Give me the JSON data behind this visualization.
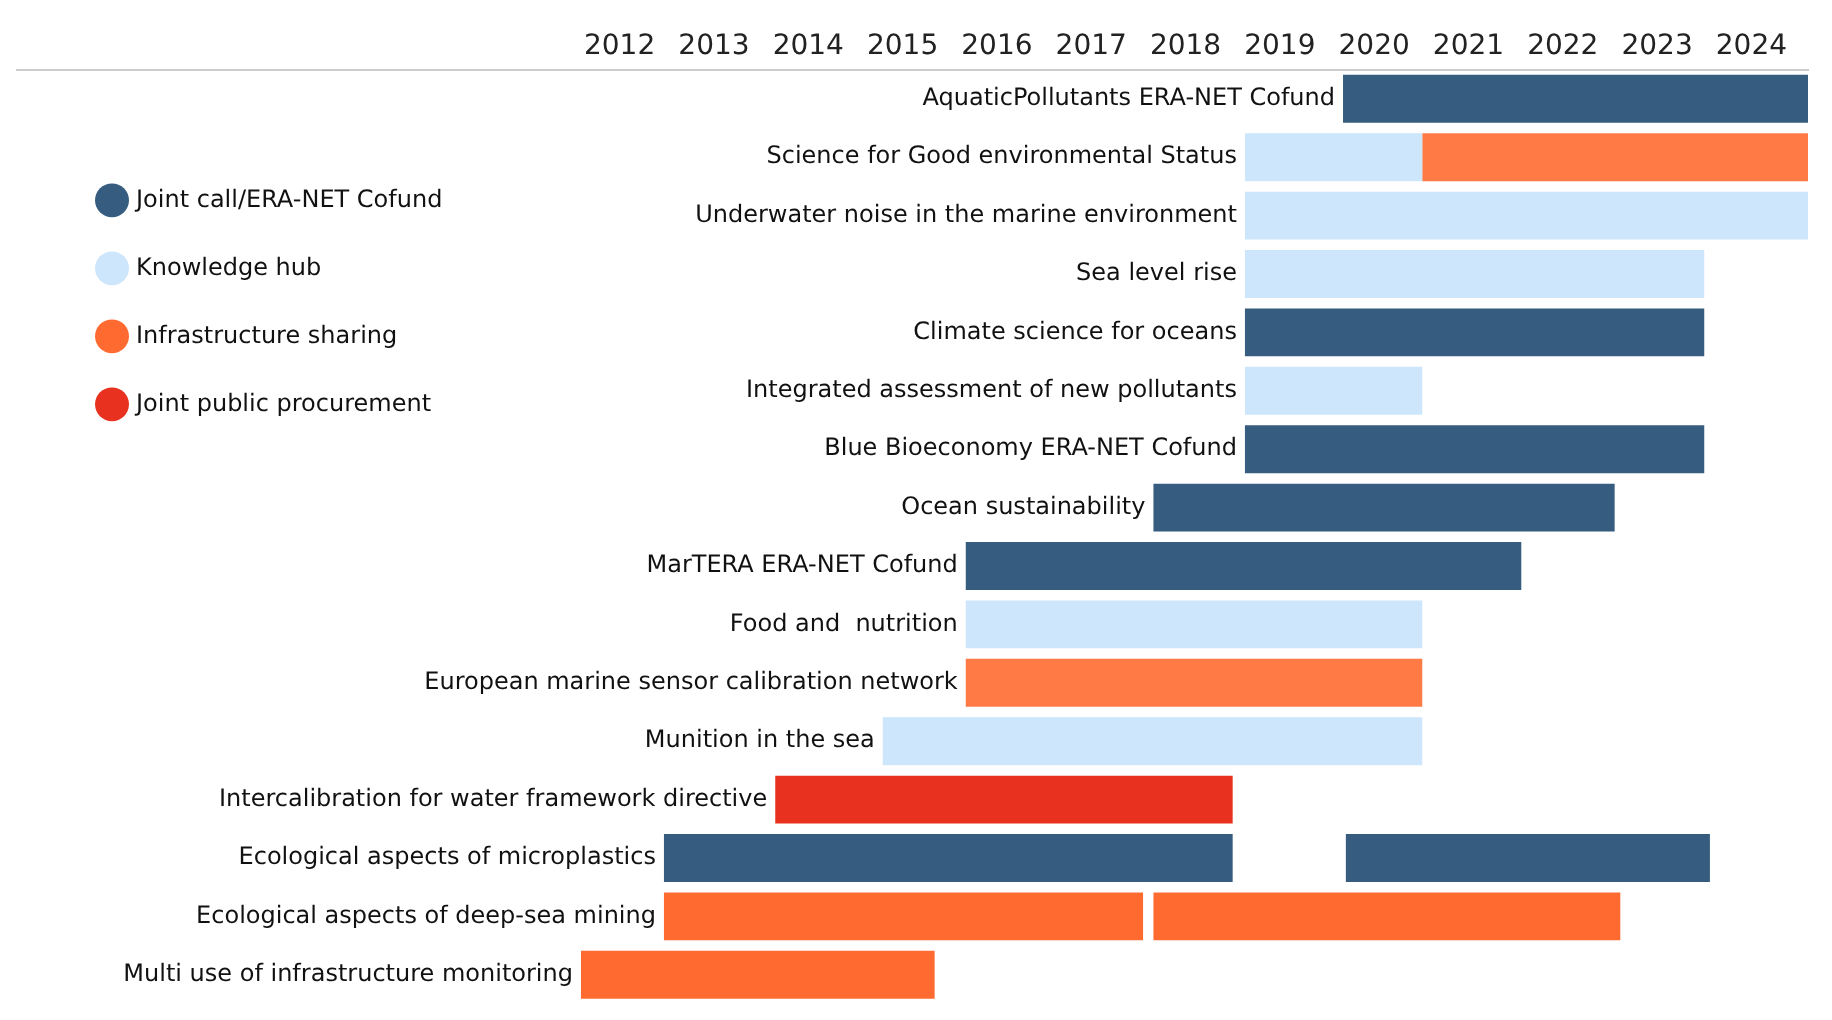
{
  "chart_data": {
    "type": "bar",
    "orientation": "horizontal",
    "legend": "left",
    "grid": false,
    "categories": [
      "AquaticPollutants ERA-NET Cofund",
      "Science for Good environmental Status",
      "Underwater noise in the marine environment",
      "Sea level rise",
      "Climate science for oceans",
      "Integrated assessment of new pollutants",
      "Blue Bioeconomy ERA-NET Cofund",
      "Ocean sustainability",
      "MarTERA ERA-NET Cofund",
      "Food and  nutrition",
      "European marine sensor calibration network",
      "Munition in the sea",
      "Intercalibration for water framework directive",
      "Ecological aspects of microplastics",
      "Ecological aspects of deep-sea mining",
      "Multi use of infrastructure monitoring"
    ],
    "xlim": [
      2005.6,
      2024.6
    ],
    "xticks": [
      2012,
      2013,
      2014,
      2015,
      2016,
      2017,
      2018,
      2019,
      2020,
      2021,
      2022,
      2023,
      2024
    ],
    "series": [
      {
        "name": "Joint call/ERA-NET Cofund",
        "color": "#365c7f",
        "base": [
          2019.67,
          null,
          null,
          null,
          2018.63,
          null,
          2018.63,
          2017.66,
          2015.67,
          null,
          null,
          null,
          null,
          2012.47,
          null,
          null
        ],
        "values": [
          4.93,
          null,
          null,
          null,
          4.87,
          null,
          4.87,
          4.89,
          5.89,
          null,
          null,
          null,
          null,
          6.03,
          null,
          null
        ]
      },
      {
        "color": "#365c7f",
        "base": [
          null,
          null,
          null,
          null,
          null,
          null,
          null,
          null,
          null,
          null,
          null,
          null,
          null,
          2019.7,
          null,
          null
        ],
        "values": [
          null,
          null,
          null,
          null,
          null,
          null,
          null,
          null,
          null,
          null,
          null,
          null,
          null,
          3.86,
          null,
          null
        ]
      },
      {
        "name": "Knowledge hub",
        "color": "#cde6fb",
        "base": [
          null,
          2018.63,
          2018.63,
          2018.63,
          null,
          2018.63,
          null,
          null,
          null,
          2015.67,
          null,
          2014.79,
          null,
          null,
          null,
          null
        ],
        "values": [
          null,
          1.88,
          5.97,
          4.87,
          null,
          1.88,
          null,
          null,
          null,
          4.84,
          null,
          5.72,
          null,
          null,
          null,
          null
        ]
      },
      {
        "name": "Infrastructure sharing",
        "color": "#ff6a30",
        "base": [
          null,
          null,
          null,
          null,
          null,
          null,
          null,
          null,
          null,
          null,
          null,
          null,
          null,
          null,
          2012.47,
          2011.59
        ],
        "values": [
          null,
          null,
          null,
          null,
          null,
          null,
          null,
          null,
          null,
          null,
          null,
          null,
          null,
          null,
          5.08,
          3.75
        ]
      },
      {
        "color": "#ff6a30",
        "base": [
          null,
          null,
          null,
          null,
          null,
          null,
          null,
          null,
          null,
          null,
          null,
          null,
          null,
          null,
          2017.66,
          null
        ],
        "values": [
          null,
          null,
          null,
          null,
          null,
          null,
          null,
          null,
          null,
          null,
          null,
          null,
          null,
          null,
          4.95,
          null
        ]
      },
      {
        "name": "Joint public procurement",
        "color": "#e8321f",
        "base": [
          null,
          null,
          null,
          null,
          null,
          null,
          null,
          null,
          null,
          null,
          null,
          null,
          2013.65,
          null,
          null,
          null
        ],
        "values": [
          null,
          null,
          null,
          null,
          null,
          null,
          null,
          null,
          null,
          null,
          null,
          null,
          4.85,
          null,
          null,
          null
        ]
      },
      {
        "color": "#ff7a45",
        "base": [
          null,
          2020.51,
          null,
          null,
          null,
          null,
          null,
          null,
          null,
          null,
          2015.67,
          null,
          null,
          null,
          null,
          null
        ],
        "values": [
          null,
          4.09,
          null,
          null,
          null,
          null,
          null,
          null,
          null,
          null,
          4.84,
          null,
          null,
          null,
          null,
          null
        ]
      }
    ]
  }
}
